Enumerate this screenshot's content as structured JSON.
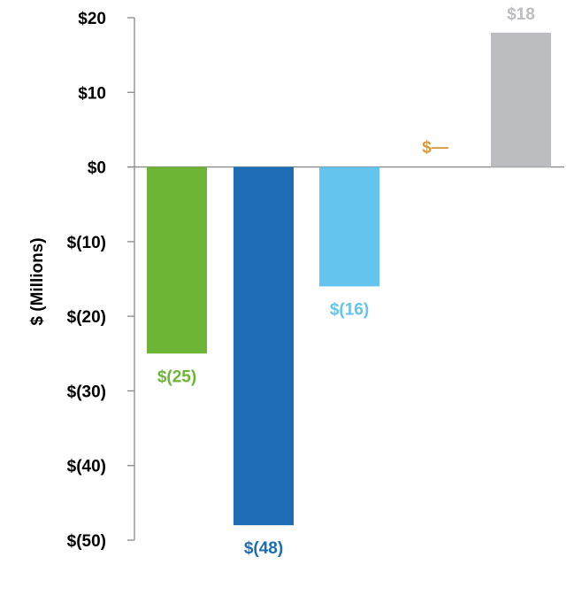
{
  "chart_data": {
    "type": "bar",
    "title": "",
    "xlabel": "",
    "ylabel": "$ (Millions)",
    "ylim": [
      -50,
      20
    ],
    "yticks": [
      20,
      10,
      0,
      -10,
      -20,
      -30,
      -40,
      -50
    ],
    "ytick_labels": [
      "$20",
      "$10",
      "$0",
      "$(10)",
      "$(20)",
      "$(30)",
      "$(40)",
      "$(50)"
    ],
    "grid": false,
    "legend": "none",
    "bars": [
      {
        "name": "bar-1",
        "value": -25,
        "label": "$(25)",
        "color": "#6cb535",
        "label_color": "#6cb535"
      },
      {
        "name": "bar-2",
        "value": -48,
        "label": "$(48)",
        "color": "#1c6db4",
        "label_color": "#1c6db4"
      },
      {
        "name": "bar-3",
        "value": -16,
        "label": "$(16)",
        "color": "#64c4ee",
        "label_color": "#64c4ee"
      },
      {
        "name": "bar-4",
        "value": 0,
        "label": "$—",
        "color": "#d89a3c",
        "label_color": "#d89a3c"
      },
      {
        "name": "bar-5",
        "value": 18,
        "label": "$18",
        "color": "#bcbdc0",
        "label_color": "#bcbdc0"
      }
    ]
  }
}
